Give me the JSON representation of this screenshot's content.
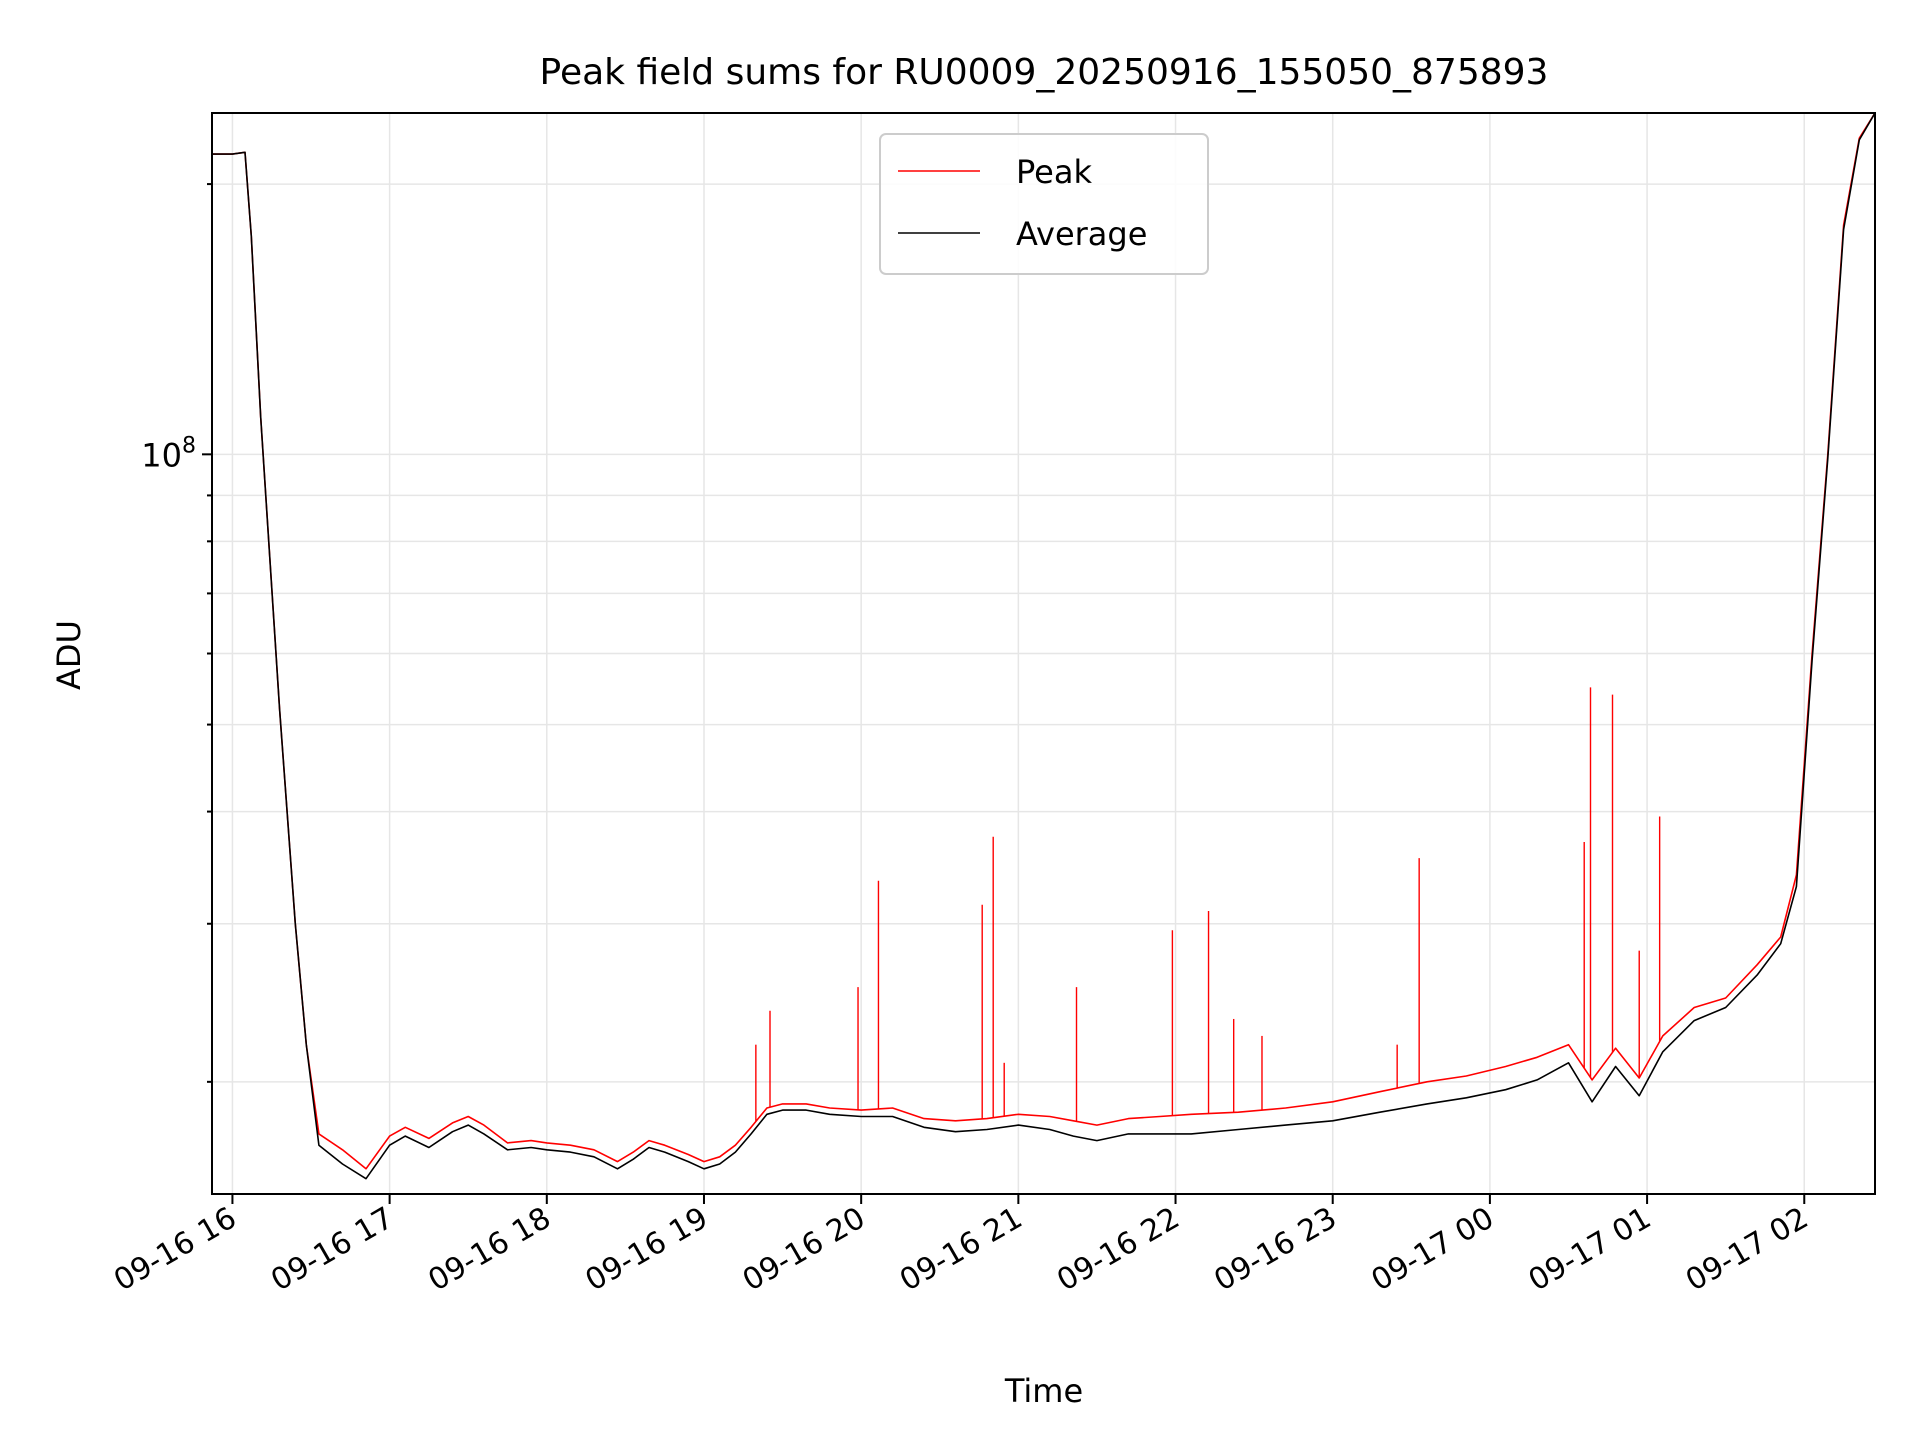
{
  "chart_data": {
    "type": "line",
    "title": "Peak field sums for RU0009_20250916_155050_875893",
    "xlabel": "Time",
    "ylabel": "ADU",
    "y_scale": "log",
    "ylim": [
      15000000,
      240000000
    ],
    "xlim_hours": [
      15.87,
      26.45
    ],
    "grid": true,
    "legend_position": "upper-center",
    "x_tick_labels": [
      "09-16 16",
      "09-16 17",
      "09-16 18",
      "09-16 19",
      "09-16 20",
      "09-16 21",
      "09-16 22",
      "09-16 23",
      "09-17 00",
      "09-17 01",
      "09-17 02"
    ],
    "x_tick_hours": [
      16,
      17,
      18,
      19,
      20,
      21,
      22,
      23,
      24,
      25,
      26
    ],
    "y_major_tick": {
      "value": 100000000,
      "base": "10",
      "exponent": "8"
    },
    "y_minor_ticks": [
      20000000,
      30000000,
      40000000,
      50000000,
      60000000,
      70000000,
      80000000,
      90000000,
      200000000
    ],
    "series": [
      {
        "name": "Peak",
        "color": "#ff0000",
        "x_hours": [
          15.87,
          16.0,
          16.08,
          16.12,
          16.18,
          16.3,
          16.4,
          16.47,
          16.55,
          16.7,
          16.85,
          17.0,
          17.1,
          17.25,
          17.4,
          17.5,
          17.6,
          17.75,
          17.9,
          18.0,
          18.15,
          18.3,
          18.45,
          18.55,
          18.65,
          18.75,
          18.9,
          19.0,
          19.1,
          19.2,
          19.3,
          19.4,
          19.5,
          19.65,
          19.8,
          20.0,
          20.2,
          20.4,
          20.6,
          20.8,
          21.0,
          21.2,
          21.35,
          21.5,
          21.7,
          21.9,
          22.1,
          22.4,
          22.7,
          23.0,
          23.3,
          23.6,
          23.85,
          24.1,
          24.3,
          24.5,
          24.65,
          24.8,
          24.95,
          25.1,
          25.3,
          25.5,
          25.7,
          25.85,
          25.95,
          26.05,
          26.15,
          26.25,
          26.35,
          26.45
        ],
        "values": [
          216000000,
          216000000,
          217000000,
          175000000,
          110000000,
          52000000,
          30000000,
          22000000,
          17500000,
          16800000,
          16000000,
          17400000,
          17800000,
          17300000,
          18000000,
          18300000,
          17900000,
          17100000,
          17200000,
          17100000,
          17000000,
          16800000,
          16300000,
          16700000,
          17200000,
          17000000,
          16600000,
          16300000,
          16500000,
          17000000,
          17800000,
          18700000,
          18900000,
          18900000,
          18700000,
          18600000,
          18700000,
          18200000,
          18100000,
          18200000,
          18400000,
          18300000,
          18100000,
          17900000,
          18200000,
          18300000,
          18400000,
          18500000,
          18700000,
          19000000,
          19500000,
          20000000,
          20300000,
          20800000,
          21300000,
          22000000,
          20100000,
          21800000,
          20200000,
          22500000,
          24200000,
          24800000,
          27000000,
          29000000,
          34000000,
          60000000,
          100000000,
          180000000,
          225000000,
          240000000
        ],
        "spikes": [
          [
            19.33,
            22000000
          ],
          [
            19.42,
            24000000
          ],
          [
            19.98,
            25500000
          ],
          [
            20.11,
            33500000
          ],
          [
            20.77,
            31500000
          ],
          [
            20.84,
            37500000
          ],
          [
            20.91,
            21000000
          ],
          [
            21.37,
            25500000
          ],
          [
            21.98,
            29500000
          ],
          [
            22.21,
            31000000
          ],
          [
            22.37,
            23500000
          ],
          [
            22.55,
            22500000
          ],
          [
            23.41,
            22000000
          ],
          [
            23.55,
            35500000
          ],
          [
            24.6,
            37000000
          ],
          [
            24.64,
            55000000
          ],
          [
            24.78,
            54000000
          ],
          [
            24.95,
            28000000
          ],
          [
            25.08,
            39500000
          ]
        ]
      },
      {
        "name": "Average",
        "color": "#000000",
        "x_hours": [
          15.87,
          16.0,
          16.08,
          16.12,
          16.18,
          16.3,
          16.4,
          16.47,
          16.55,
          16.7,
          16.85,
          17.0,
          17.1,
          17.25,
          17.4,
          17.5,
          17.6,
          17.75,
          17.9,
          18.0,
          18.15,
          18.3,
          18.45,
          18.55,
          18.65,
          18.75,
          18.9,
          19.0,
          19.1,
          19.2,
          19.3,
          19.4,
          19.5,
          19.65,
          19.8,
          20.0,
          20.2,
          20.4,
          20.6,
          20.8,
          21.0,
          21.2,
          21.35,
          21.5,
          21.7,
          21.9,
          22.1,
          22.4,
          22.7,
          23.0,
          23.3,
          23.6,
          23.85,
          24.1,
          24.3,
          24.5,
          24.65,
          24.8,
          24.95,
          25.1,
          25.3,
          25.5,
          25.7,
          25.85,
          25.95,
          26.05,
          26.15,
          26.25,
          26.35,
          26.45
        ],
        "values": [
          216000000,
          216000000,
          217000000,
          175000000,
          110000000,
          52000000,
          30000000,
          22000000,
          17000000,
          16200000,
          15600000,
          17000000,
          17400000,
          16900000,
          17600000,
          17900000,
          17500000,
          16800000,
          16900000,
          16800000,
          16700000,
          16500000,
          16000000,
          16400000,
          16900000,
          16700000,
          16300000,
          16000000,
          16200000,
          16700000,
          17500000,
          18400000,
          18600000,
          18600000,
          18400000,
          18300000,
          18300000,
          17800000,
          17600000,
          17700000,
          17900000,
          17700000,
          17400000,
          17200000,
          17500000,
          17500000,
          17500000,
          17700000,
          17900000,
          18100000,
          18500000,
          18900000,
          19200000,
          19600000,
          20100000,
          21000000,
          19000000,
          20800000,
          19300000,
          21600000,
          23400000,
          24200000,
          26300000,
          28500000,
          33000000,
          59000000,
          99000000,
          178000000,
          224000000,
          240000000
        ]
      }
    ]
  }
}
